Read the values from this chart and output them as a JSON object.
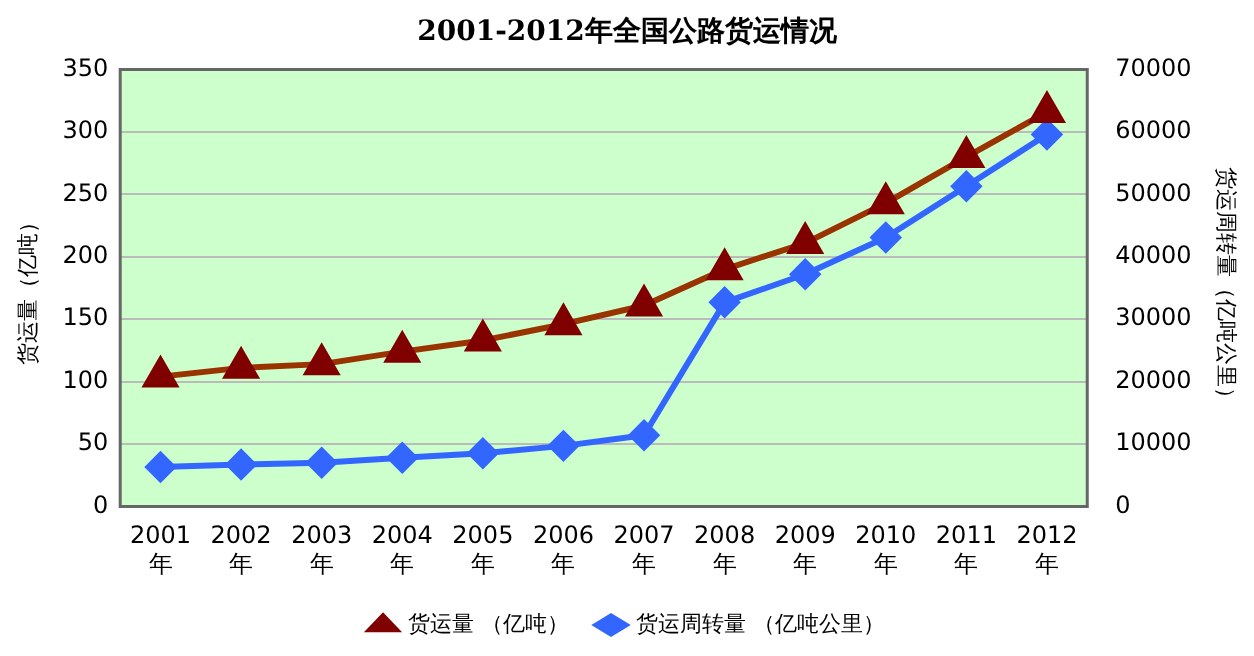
{
  "chart_data": {
    "type": "line",
    "title": "2001-2012年全国公路货运情况",
    "ylabel": "货运量（亿吨）",
    "y2label": "货运周转量（亿吨公里）",
    "categories": [
      "2001年",
      "2002年",
      "2003年",
      "2004年",
      "2005年",
      "2006年",
      "2007年",
      "2008年",
      "2009年",
      "2010年",
      "2011年",
      "2012年"
    ],
    "series": [
      {
        "name": "货运量 （亿吨）",
        "color": "#993300",
        "marker": "triangle",
        "values": [
          104,
          111,
          114,
          124,
          133,
          146,
          161,
          190,
          211,
          243,
          280,
          316
        ]
      },
      {
        "name": "货运周转量 （亿吨公里）",
        "color": "#3366ff",
        "marker": "diamond",
        "axis": "y2",
        "values": [
          6300,
          6700,
          7000,
          7800,
          8500,
          9700,
          11400,
          32700,
          37200,
          43100,
          51300,
          59600
        ]
      }
    ],
    "ylim": [
      0,
      350
    ],
    "yticks": [
      0,
      50,
      100,
      150,
      200,
      250,
      300,
      350
    ],
    "y2lim": [
      0,
      70000
    ],
    "y2ticks": [
      0,
      10000,
      20000,
      30000,
      40000,
      50000,
      60000,
      70000
    ],
    "grid": "y",
    "legend": "bottom"
  }
}
